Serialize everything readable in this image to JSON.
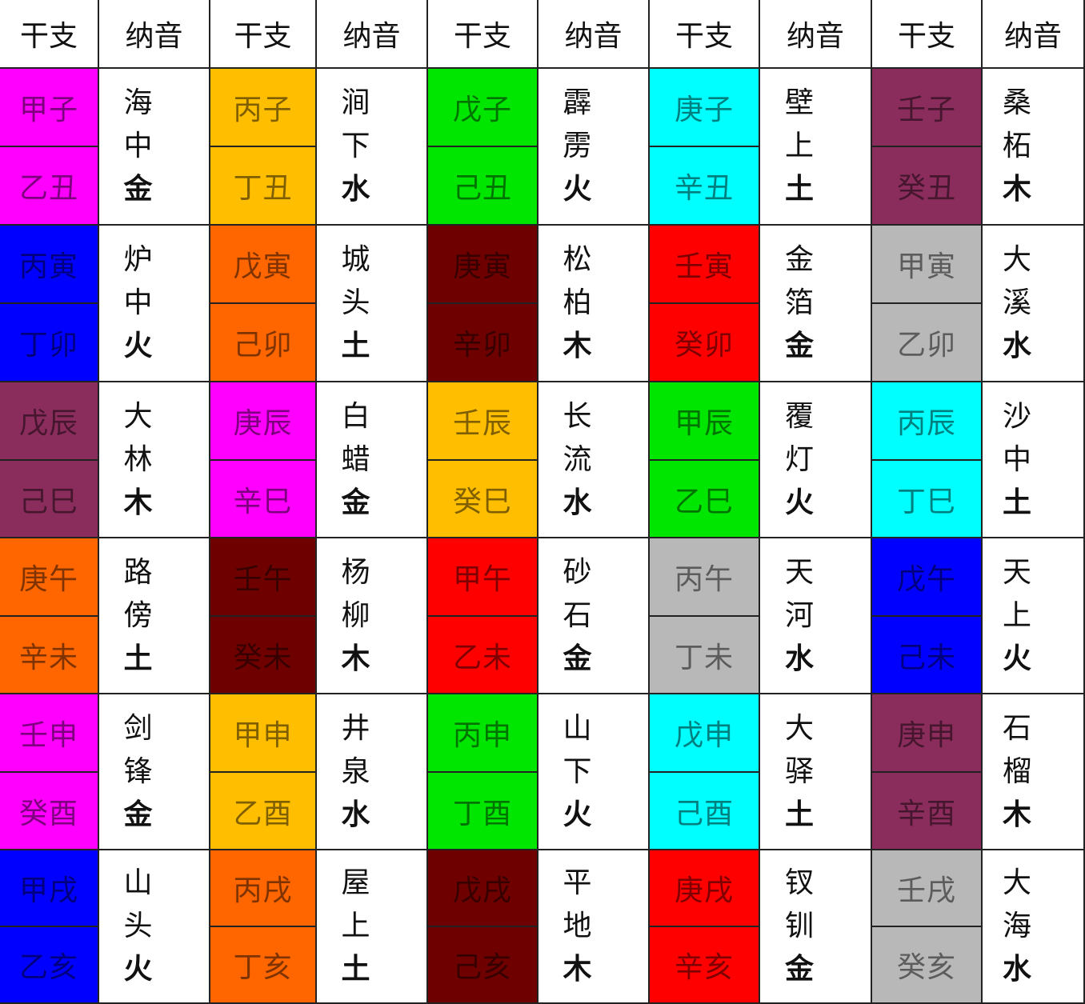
{
  "headers": [
    "干支",
    "纳音",
    "干支",
    "纳音",
    "干支",
    "纳音",
    "干支",
    "纳音",
    "干支",
    "纳音"
  ],
  "colors": {
    "magenta": "#ff00ff",
    "blue": "#0000ff",
    "purple": "#8b2d5c",
    "orange": "#ff6600",
    "gold": "#ffbf00",
    "darkred": "#6e0000",
    "green": "#00e600",
    "red": "#ff0000",
    "cyan": "#00ffff",
    "gray": "#b8b8b8"
  },
  "columns": [
    [
      {
        "ganzhi": [
          "甲子",
          "乙丑"
        ],
        "nayin": [
          "海",
          "中",
          "金"
        ],
        "color": "magenta"
      },
      {
        "ganzhi": [
          "丙寅",
          "丁卯"
        ],
        "nayin": [
          "炉",
          "中",
          "火"
        ],
        "color": "blue"
      },
      {
        "ganzhi": [
          "戊辰",
          "己巳"
        ],
        "nayin": [
          "大",
          "林",
          "木"
        ],
        "color": "purple"
      },
      {
        "ganzhi": [
          "庚午",
          "辛未"
        ],
        "nayin": [
          "路",
          "傍",
          "土"
        ],
        "color": "orange"
      },
      {
        "ganzhi": [
          "壬申",
          "癸酉"
        ],
        "nayin": [
          "剑",
          "锋",
          "金"
        ],
        "color": "magenta"
      },
      {
        "ganzhi": [
          "甲戌",
          "乙亥"
        ],
        "nayin": [
          "山",
          "头",
          "火"
        ],
        "color": "blue"
      }
    ],
    [
      {
        "ganzhi": [
          "丙子",
          "丁丑"
        ],
        "nayin": [
          "涧",
          "下",
          "水"
        ],
        "color": "gold"
      },
      {
        "ganzhi": [
          "戊寅",
          "己卯"
        ],
        "nayin": [
          "城",
          "头",
          "土"
        ],
        "color": "orange"
      },
      {
        "ganzhi": [
          "庚辰",
          "辛巳"
        ],
        "nayin": [
          "白",
          "蜡",
          "金"
        ],
        "color": "magenta"
      },
      {
        "ganzhi": [
          "壬午",
          "癸未"
        ],
        "nayin": [
          "杨",
          "柳",
          "木"
        ],
        "color": "darkred"
      },
      {
        "ganzhi": [
          "甲申",
          "乙酉"
        ],
        "nayin": [
          "井",
          "泉",
          "水"
        ],
        "color": "gold"
      },
      {
        "ganzhi": [
          "丙戌",
          "丁亥"
        ],
        "nayin": [
          "屋",
          "上",
          "土"
        ],
        "color": "orange"
      }
    ],
    [
      {
        "ganzhi": [
          "戊子",
          "己丑"
        ],
        "nayin": [
          "霹",
          "雳",
          "火"
        ],
        "color": "green"
      },
      {
        "ganzhi": [
          "庚寅",
          "辛卯"
        ],
        "nayin": [
          "松",
          "柏",
          "木"
        ],
        "color": "darkred"
      },
      {
        "ganzhi": [
          "壬辰",
          "癸巳"
        ],
        "nayin": [
          "长",
          "流",
          "水"
        ],
        "color": "gold"
      },
      {
        "ganzhi": [
          "甲午",
          "乙未"
        ],
        "nayin": [
          "砂",
          "石",
          "金"
        ],
        "color": "red"
      },
      {
        "ganzhi": [
          "丙申",
          "丁酉"
        ],
        "nayin": [
          "山",
          "下",
          "火"
        ],
        "color": "green"
      },
      {
        "ganzhi": [
          "戊戌",
          "己亥"
        ],
        "nayin": [
          "平",
          "地",
          "木"
        ],
        "color": "darkred"
      }
    ],
    [
      {
        "ganzhi": [
          "庚子",
          "辛丑"
        ],
        "nayin": [
          "壁",
          "上",
          "土"
        ],
        "color": "cyan"
      },
      {
        "ganzhi": [
          "壬寅",
          "癸卯"
        ],
        "nayin": [
          "金",
          "箔",
          "金"
        ],
        "color": "red"
      },
      {
        "ganzhi": [
          "甲辰",
          "乙巳"
        ],
        "nayin": [
          "覆",
          "灯",
          "火"
        ],
        "color": "green"
      },
      {
        "ganzhi": [
          "丙午",
          "丁未"
        ],
        "nayin": [
          "天",
          "河",
          "水"
        ],
        "color": "gray"
      },
      {
        "ganzhi": [
          "戊申",
          "己酉"
        ],
        "nayin": [
          "大",
          "驿",
          "土"
        ],
        "color": "cyan"
      },
      {
        "ganzhi": [
          "庚戌",
          "辛亥"
        ],
        "nayin": [
          "钗",
          "钏",
          "金"
        ],
        "color": "red"
      }
    ],
    [
      {
        "ganzhi": [
          "壬子",
          "癸丑"
        ],
        "nayin": [
          "桑",
          "柘",
          "木"
        ],
        "color": "purple"
      },
      {
        "ganzhi": [
          "甲寅",
          "乙卯"
        ],
        "nayin": [
          "大",
          "溪",
          "水"
        ],
        "color": "gray"
      },
      {
        "ganzhi": [
          "丙辰",
          "丁巳"
        ],
        "nayin": [
          "沙",
          "中",
          "土"
        ],
        "color": "cyan"
      },
      {
        "ganzhi": [
          "戊午",
          "己未"
        ],
        "nayin": [
          "天",
          "上",
          "火"
        ],
        "color": "blue"
      },
      {
        "ganzhi": [
          "庚申",
          "辛酉"
        ],
        "nayin": [
          "石",
          "榴",
          "木"
        ],
        "color": "purple"
      },
      {
        "ganzhi": [
          "壬戌",
          "癸亥"
        ],
        "nayin": [
          "大",
          "海",
          "水"
        ],
        "color": "gray"
      }
    ]
  ]
}
